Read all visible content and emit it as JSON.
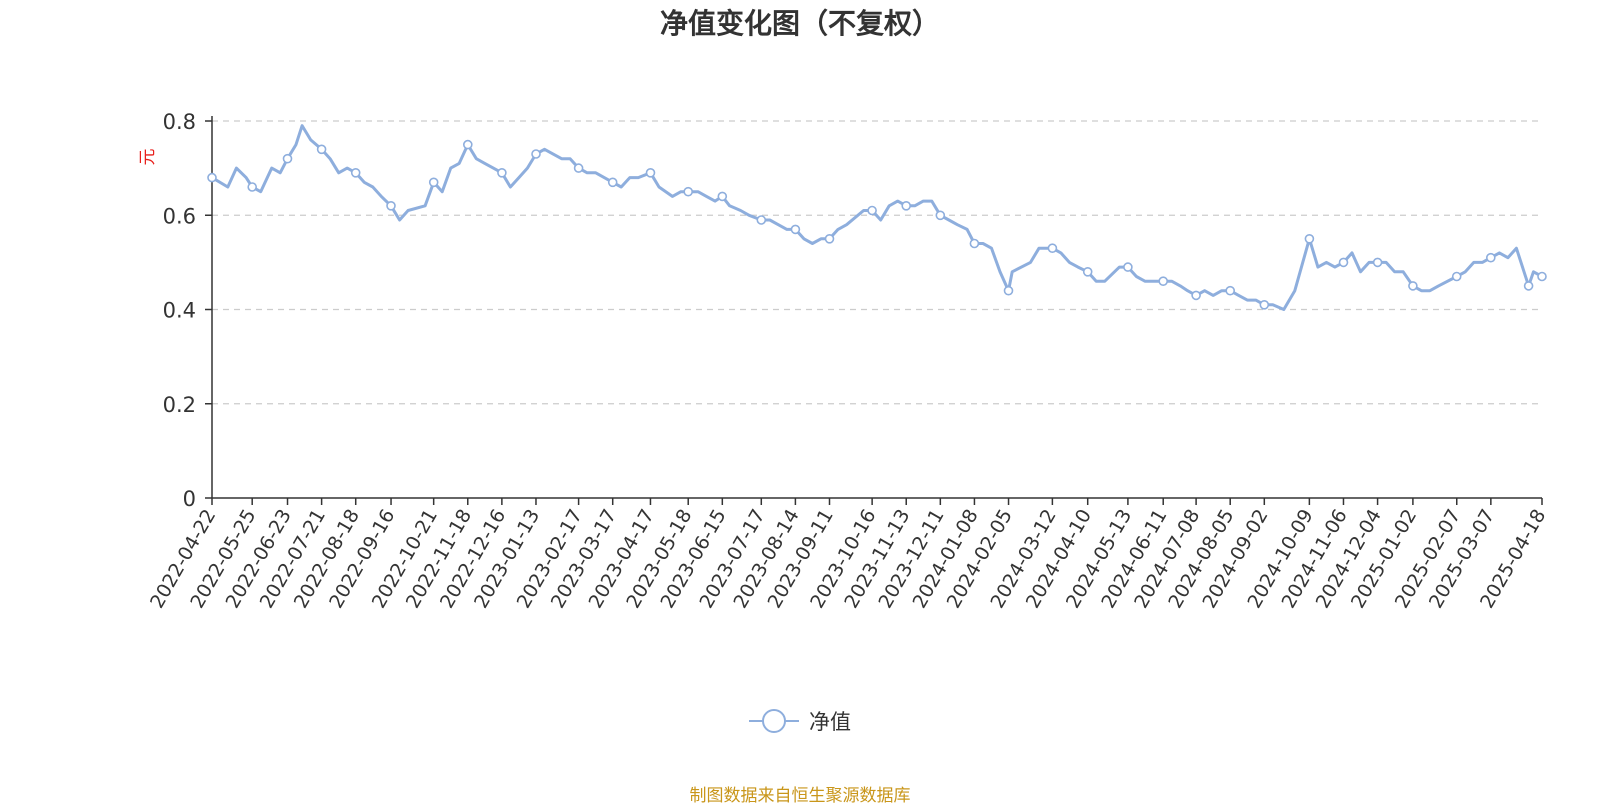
{
  "chart_data": {
    "type": "line",
    "title": "净值变化图（不复权）",
    "ylabel": "元",
    "ylim": [
      0,
      0.8
    ],
    "yticks": [
      "0",
      "0.2",
      "0.4",
      "0.6",
      "0.8"
    ],
    "grid": true,
    "legend_position": "bottom-center",
    "x_tick_labels": [
      "2022-04-22",
      "2022-05-25",
      "2022-06-23",
      "2022-07-21",
      "2022-08-18",
      "2022-09-16",
      "2022-10-21",
      "2022-11-18",
      "2022-12-16",
      "2023-01-13",
      "2023-02-17",
      "2023-03-17",
      "2023-04-17",
      "2023-05-18",
      "2023-06-15",
      "2023-07-17",
      "2023-08-14",
      "2023-09-11",
      "2023-10-16",
      "2023-11-13",
      "2023-12-11",
      "2024-01-08",
      "2024-02-05",
      "2024-03-12",
      "2024-04-10",
      "2024-05-13",
      "2024-06-11",
      "2024-07-08",
      "2024-08-05",
      "2024-09-02",
      "2024-10-09",
      "2024-11-06",
      "2024-12-04",
      "2025-01-02",
      "2025-02-07",
      "2025-03-07",
      "2025-04-18"
    ],
    "series": [
      {
        "name": "净值",
        "color": "#8eaedd",
        "x": [
          "2022-04-22",
          "2022-05-05",
          "2022-05-12",
          "2022-05-20",
          "2022-05-25",
          "2022-06-01",
          "2022-06-10",
          "2022-06-17",
          "2022-06-23",
          "2022-06-30",
          "2022-07-05",
          "2022-07-12",
          "2022-07-21",
          "2022-07-28",
          "2022-08-04",
          "2022-08-11",
          "2022-08-18",
          "2022-08-25",
          "2022-09-01",
          "2022-09-08",
          "2022-09-16",
          "2022-09-23",
          "2022-09-30",
          "2022-10-14",
          "2022-10-21",
          "2022-10-28",
          "2022-11-04",
          "2022-11-11",
          "2022-11-18",
          "2022-11-25",
          "2022-12-02",
          "2022-12-09",
          "2022-12-16",
          "2022-12-23",
          "2022-12-30",
          "2023-01-06",
          "2023-01-13",
          "2023-01-20",
          "2023-02-03",
          "2023-02-10",
          "2023-02-17",
          "2023-02-24",
          "2023-03-03",
          "2023-03-10",
          "2023-03-17",
          "2023-03-24",
          "2023-03-31",
          "2023-04-07",
          "2023-04-17",
          "2023-04-24",
          "2023-05-05",
          "2023-05-12",
          "2023-05-18",
          "2023-05-26",
          "2023-06-02",
          "2023-06-09",
          "2023-06-15",
          "2023-06-21",
          "2023-06-30",
          "2023-07-07",
          "2023-07-17",
          "2023-07-24",
          "2023-07-31",
          "2023-08-07",
          "2023-08-14",
          "2023-08-21",
          "2023-08-28",
          "2023-09-04",
          "2023-09-11",
          "2023-09-18",
          "2023-09-25",
          "2023-10-09",
          "2023-10-16",
          "2023-10-23",
          "2023-10-30",
          "2023-11-06",
          "2023-11-13",
          "2023-11-20",
          "2023-11-27",
          "2023-12-04",
          "2023-12-11",
          "2023-12-18",
          "2023-12-25",
          "2024-01-02",
          "2024-01-08",
          "2024-01-15",
          "2024-01-22",
          "2024-01-29",
          "2024-02-05",
          "2024-02-08",
          "2024-02-23",
          "2024-03-01",
          "2024-03-12",
          "2024-03-19",
          "2024-03-26",
          "2024-04-02",
          "2024-04-10",
          "2024-04-17",
          "2024-04-24",
          "2024-05-06",
          "2024-05-13",
          "2024-05-20",
          "2024-05-27",
          "2024-06-03",
          "2024-06-11",
          "2024-06-18",
          "2024-06-25",
          "2024-07-01",
          "2024-07-08",
          "2024-07-15",
          "2024-07-22",
          "2024-07-29",
          "2024-08-05",
          "2024-08-12",
          "2024-08-19",
          "2024-08-26",
          "2024-09-02",
          "2024-09-09",
          "2024-09-18",
          "2024-09-27",
          "2024-10-09",
          "2024-10-16",
          "2024-10-23",
          "2024-10-30",
          "2024-11-06",
          "2024-11-13",
          "2024-11-20",
          "2024-11-27",
          "2024-12-04",
          "2024-12-11",
          "2024-12-18",
          "2024-12-25",
          "2025-01-02",
          "2025-01-09",
          "2025-01-16",
          "2025-01-23",
          "2025-02-07",
          "2025-02-14",
          "2025-02-21",
          "2025-02-28",
          "2025-03-07",
          "2025-03-14",
          "2025-03-21",
          "2025-03-28",
          "2025-04-07",
          "2025-04-11",
          "2025-04-18"
        ],
        "values": [
          0.68,
          0.66,
          0.7,
          0.68,
          0.66,
          0.65,
          0.7,
          0.69,
          0.72,
          0.75,
          0.79,
          0.76,
          0.74,
          0.72,
          0.69,
          0.7,
          0.69,
          0.67,
          0.66,
          0.64,
          0.62,
          0.59,
          0.61,
          0.62,
          0.67,
          0.65,
          0.7,
          0.71,
          0.75,
          0.72,
          0.71,
          0.7,
          0.69,
          0.66,
          0.68,
          0.7,
          0.73,
          0.74,
          0.72,
          0.72,
          0.7,
          0.69,
          0.69,
          0.68,
          0.67,
          0.66,
          0.68,
          0.68,
          0.69,
          0.66,
          0.64,
          0.65,
          0.65,
          0.65,
          0.64,
          0.63,
          0.64,
          0.62,
          0.61,
          0.6,
          0.59,
          0.59,
          0.58,
          0.57,
          0.57,
          0.55,
          0.54,
          0.55,
          0.55,
          0.57,
          0.58,
          0.61,
          0.61,
          0.59,
          0.62,
          0.63,
          0.62,
          0.62,
          0.63,
          0.63,
          0.6,
          0.59,
          0.58,
          0.57,
          0.54,
          0.54,
          0.53,
          0.48,
          0.44,
          0.48,
          0.5,
          0.53,
          0.53,
          0.52,
          0.5,
          0.49,
          0.48,
          0.46,
          0.46,
          0.49,
          0.49,
          0.47,
          0.46,
          0.46,
          0.46,
          0.46,
          0.45,
          0.44,
          0.43,
          0.44,
          0.43,
          0.44,
          0.44,
          0.43,
          0.42,
          0.42,
          0.41,
          0.41,
          0.4,
          0.44,
          0.55,
          0.49,
          0.5,
          0.49,
          0.5,
          0.52,
          0.48,
          0.5,
          0.5,
          0.5,
          0.48,
          0.48,
          0.45,
          0.44,
          0.44,
          0.45,
          0.47,
          0.48,
          0.5,
          0.5,
          0.51,
          0.52,
          0.51,
          0.53,
          0.45,
          0.48,
          0.47
        ]
      }
    ],
    "source_note": "制图数据来自恒生聚源数据库"
  }
}
